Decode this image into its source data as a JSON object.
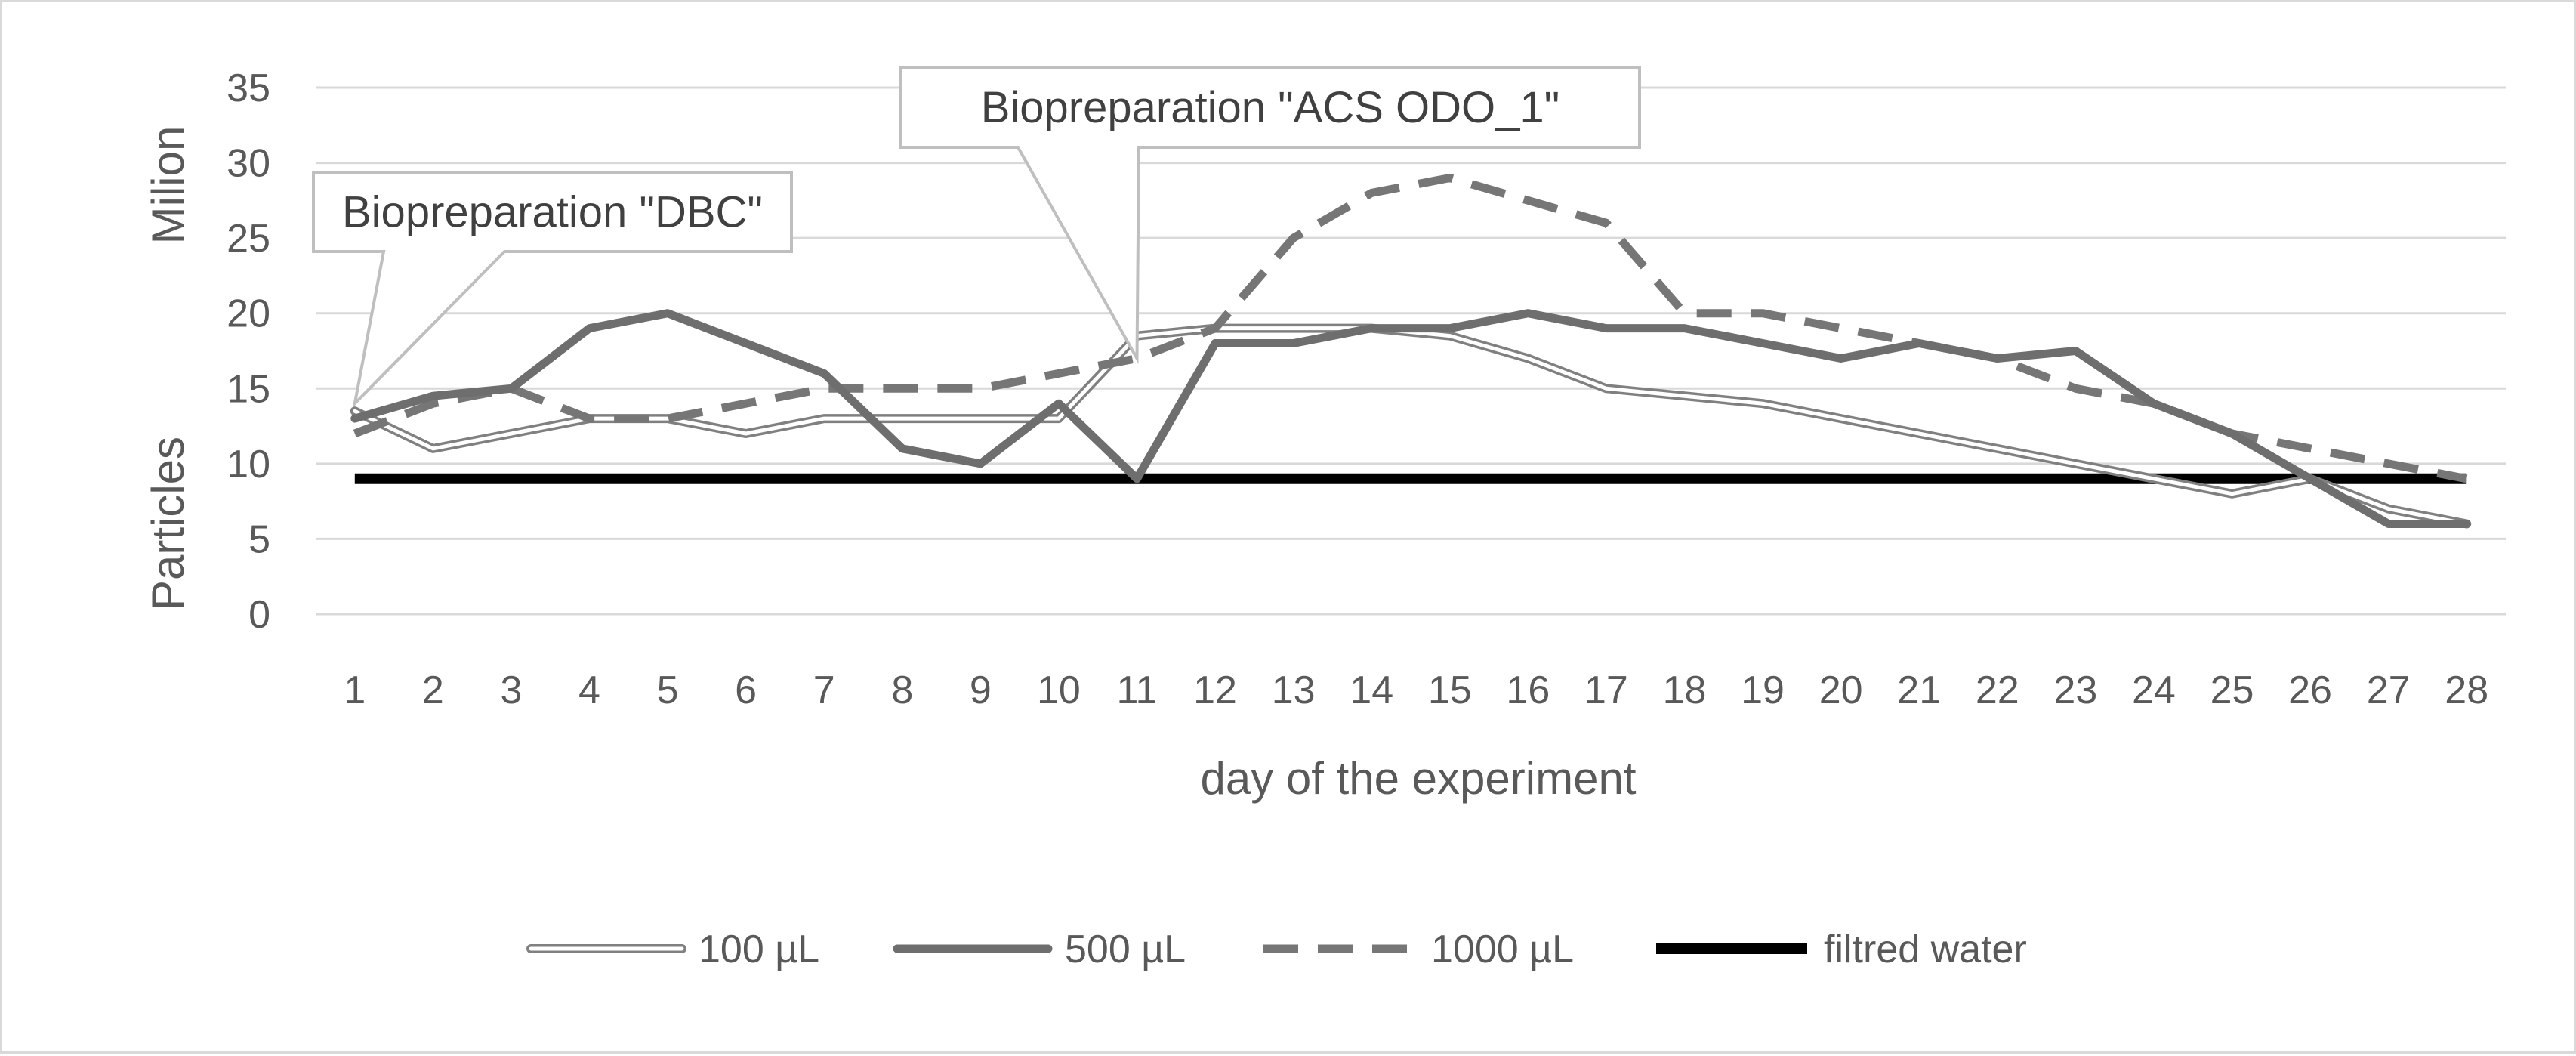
{
  "chart_data": {
    "type": "line",
    "title": "",
    "xlabel": "day of the experiment",
    "ylabel_parts": [
      "Particles",
      "Milion"
    ],
    "x": [
      1,
      2,
      3,
      4,
      5,
      6,
      7,
      8,
      9,
      10,
      11,
      12,
      13,
      14,
      15,
      16,
      17,
      18,
      19,
      20,
      21,
      22,
      23,
      24,
      25,
      26,
      27,
      28
    ],
    "x_tick_labels": [
      "1",
      "2",
      "3",
      "4",
      "5",
      "6",
      "7",
      "8",
      "9",
      "10",
      "11",
      "12",
      "13",
      "14",
      "15",
      "16",
      "17",
      "18",
      "19",
      "20",
      "21",
      "22",
      "23",
      "24",
      "25",
      "26",
      "27",
      "28"
    ],
    "ylim": [
      0,
      35
    ],
    "y_ticks": [
      0,
      5,
      10,
      15,
      20,
      25,
      30,
      35
    ],
    "y_tick_labels": [
      "0",
      "5",
      "10",
      "15",
      "20",
      "25",
      "30",
      "35"
    ],
    "grid": true,
    "legend_position": "bottom",
    "series": [
      {
        "name": "100 µL",
        "style": "double",
        "color": "#808080",
        "values": [
          13.5,
          11,
          12,
          13,
          13,
          12,
          13,
          13,
          13,
          13,
          18.5,
          19,
          19,
          19,
          18.5,
          17,
          15,
          14.5,
          14,
          13,
          12,
          11,
          10,
          9,
          8,
          9,
          7,
          6
        ]
      },
      {
        "name": "500 µL",
        "style": "solid-thick",
        "color": "#6e6e6e",
        "values": [
          13,
          14.5,
          15,
          19,
          20,
          18,
          16,
          11,
          10,
          14,
          9,
          18,
          18,
          19,
          19,
          20,
          19,
          19,
          18,
          17,
          18,
          17,
          17.5,
          14,
          12,
          9,
          6,
          6
        ]
      },
      {
        "name": "1000 µL",
        "style": "dashed",
        "color": "#767676",
        "values": [
          12,
          14,
          15,
          13,
          13,
          14,
          15,
          15,
          15,
          16,
          17,
          19,
          25,
          28,
          29,
          27.5,
          26,
          20,
          20,
          19,
          18,
          17,
          15,
          14,
          12,
          11,
          10,
          9
        ]
      },
      {
        "name": "filtred water",
        "style": "solid-black",
        "color": "#000000",
        "values": [
          9,
          9,
          9,
          9,
          9,
          9,
          9,
          9,
          9,
          9,
          9,
          9,
          9,
          9,
          9,
          9,
          9,
          9,
          9,
          9,
          9,
          9,
          9,
          9,
          9,
          9,
          9,
          9
        ]
      }
    ],
    "annotations": [
      {
        "text": "Biopreparation \"DBC\"",
        "x": 1,
        "y": 14
      },
      {
        "text": "Biopreparation \"ACS ODO_1\"",
        "x": 11,
        "y": 17
      }
    ]
  }
}
